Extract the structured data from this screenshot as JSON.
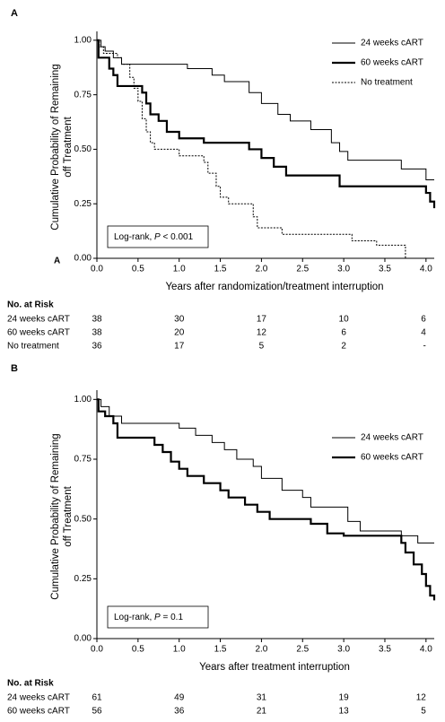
{
  "chart_data": [
    {
      "type": "step",
      "panel_label": "A",
      "extra_label": "A",
      "x_label": "Years after randomization/treatment interruption",
      "y_label": [
        "Cumulative Probability of Remaining",
        "off Treatment"
      ],
      "annotation_parts": [
        "Log-rank, ",
        "P",
        " < 0.001"
      ],
      "xlim": [
        0,
        4.1
      ],
      "ylim": [
        0,
        1.02
      ],
      "xticks": [
        {
          "value": 0,
          "label": "0.0"
        },
        0.5,
        {
          "value": 1,
          "label": "1.0"
        },
        1.5,
        {
          "value": 2,
          "label": "2.0"
        },
        2.5,
        {
          "value": 3,
          "label": "3.0"
        },
        3.5,
        {
          "value": 4,
          "label": "4.0"
        }
      ],
      "yticks": [
        {
          "value": 0,
          "label": "0.00"
        },
        0.25,
        {
          "value": 0.5,
          "label": "0.50"
        },
        0.75,
        {
          "value": 1,
          "label": "1.00"
        }
      ],
      "series": [
        {
          "name": "24 weeks cART",
          "color": "#000000",
          "line_width": 1,
          "dash": false,
          "x": [
            0,
            0.05,
            0.1,
            0.2,
            0.3,
            1.1,
            1.4,
            1.55,
            1.85,
            2.0,
            2.2,
            2.35,
            2.6,
            2.85,
            2.95,
            3.05,
            3.7,
            4.0,
            4.1
          ],
          "values": [
            1.0,
            0.97,
            0.95,
            0.92,
            0.89,
            0.87,
            0.84,
            0.81,
            0.76,
            0.71,
            0.66,
            0.63,
            0.59,
            0.53,
            0.49,
            0.45,
            0.41,
            0.36,
            0.36
          ]
        },
        {
          "name": "60 weeks cART",
          "color": "#000000",
          "line_width": 2.2,
          "dash": false,
          "x": [
            0,
            0.02,
            0.15,
            0.2,
            0.25,
            0.55,
            0.6,
            0.65,
            0.75,
            0.85,
            1.0,
            1.3,
            1.85,
            2.0,
            2.15,
            2.3,
            2.95,
            4.0,
            4.05,
            4.1
          ],
          "values": [
            1.0,
            0.92,
            0.87,
            0.84,
            0.79,
            0.76,
            0.71,
            0.66,
            0.63,
            0.58,
            0.55,
            0.53,
            0.5,
            0.46,
            0.42,
            0.38,
            0.33,
            0.3,
            0.26,
            0.23
          ]
        },
        {
          "name": "No treatment",
          "color": "#000000",
          "line_width": 1,
          "dash": true,
          "x": [
            0,
            0.03,
            0.08,
            0.25,
            0.3,
            0.4,
            0.45,
            0.5,
            0.55,
            0.6,
            0.65,
            0.7,
            1.0,
            1.3,
            1.35,
            1.45,
            1.5,
            1.6,
            1.9,
            1.95,
            2.25,
            3.1,
            3.4,
            3.75
          ],
          "values": [
            1.0,
            0.97,
            0.94,
            0.92,
            0.89,
            0.83,
            0.78,
            0.72,
            0.64,
            0.58,
            0.53,
            0.5,
            0.47,
            0.44,
            0.39,
            0.33,
            0.28,
            0.25,
            0.19,
            0.14,
            0.11,
            0.08,
            0.06,
            0.0
          ]
        }
      ],
      "risk_table": {
        "title": "No. at Risk",
        "rows": [
          {
            "label": "24 weeks cART",
            "counts": [
              38,
              30,
              17,
              10,
              6
            ]
          },
          {
            "label": "60 weeks cART",
            "counts": [
              38,
              20,
              12,
              6,
              4
            ]
          },
          {
            "label": "No treatment",
            "counts": [
              36,
              17,
              5,
              2,
              "-"
            ]
          }
        ]
      }
    },
    {
      "type": "step",
      "panel_label": "B",
      "x_label": "Years after treatment interruption",
      "y_label": [
        "Cumulative Probability of Remaining",
        "off Treatment"
      ],
      "annotation_parts": [
        "Log-rank, ",
        "P",
        " = 0.1"
      ],
      "xlim": [
        0,
        4.1
      ],
      "ylim": [
        0,
        1.02
      ],
      "xticks": [
        {
          "value": 0,
          "label": "0.0"
        },
        0.5,
        {
          "value": 1,
          "label": "1.0"
        },
        1.5,
        {
          "value": 2,
          "label": "2.0"
        },
        2.5,
        {
          "value": 3,
          "label": "3.0"
        },
        3.5,
        {
          "value": 4,
          "label": "4.0"
        }
      ],
      "yticks": [
        {
          "value": 0,
          "label": "0.00"
        },
        0.25,
        {
          "value": 0.5,
          "label": "0.50"
        },
        0.75,
        {
          "value": 1,
          "label": "1.00"
        }
      ],
      "series": [
        {
          "name": "24 weeks cART",
          "color": "#000000",
          "line_width": 1,
          "dash": false,
          "x": [
            0,
            0.05,
            0.15,
            0.3,
            1.0,
            1.2,
            1.4,
            1.55,
            1.7,
            1.9,
            2.0,
            2.25,
            2.5,
            2.6,
            3.05,
            3.2,
            3.7,
            3.9,
            4.1
          ],
          "values": [
            1.0,
            0.97,
            0.93,
            0.9,
            0.88,
            0.85,
            0.82,
            0.79,
            0.75,
            0.72,
            0.67,
            0.62,
            0.59,
            0.55,
            0.49,
            0.45,
            0.43,
            0.4,
            0.4
          ]
        },
        {
          "name": "60 weeks cART",
          "color": "#000000",
          "line_width": 2.2,
          "dash": false,
          "x": [
            0,
            0.02,
            0.1,
            0.2,
            0.25,
            0.7,
            0.8,
            0.9,
            1.0,
            1.1,
            1.3,
            1.5,
            1.6,
            1.8,
            1.95,
            2.1,
            2.6,
            2.8,
            3.0,
            3.7,
            3.75,
            3.85,
            3.95,
            4.0,
            4.05,
            4.1
          ],
          "values": [
            1.0,
            0.95,
            0.93,
            0.9,
            0.84,
            0.81,
            0.78,
            0.74,
            0.71,
            0.68,
            0.65,
            0.62,
            0.59,
            0.56,
            0.53,
            0.5,
            0.48,
            0.44,
            0.43,
            0.4,
            0.36,
            0.31,
            0.27,
            0.22,
            0.18,
            0.16
          ]
        }
      ],
      "risk_table": {
        "title": "No. at Risk",
        "rows": [
          {
            "label": "24 weeks cART",
            "counts": [
              61,
              49,
              31,
              19,
              12
            ]
          },
          {
            "label": "60 weeks cART",
            "counts": [
              56,
              36,
              21,
              13,
              5
            ]
          }
        ]
      }
    }
  ]
}
